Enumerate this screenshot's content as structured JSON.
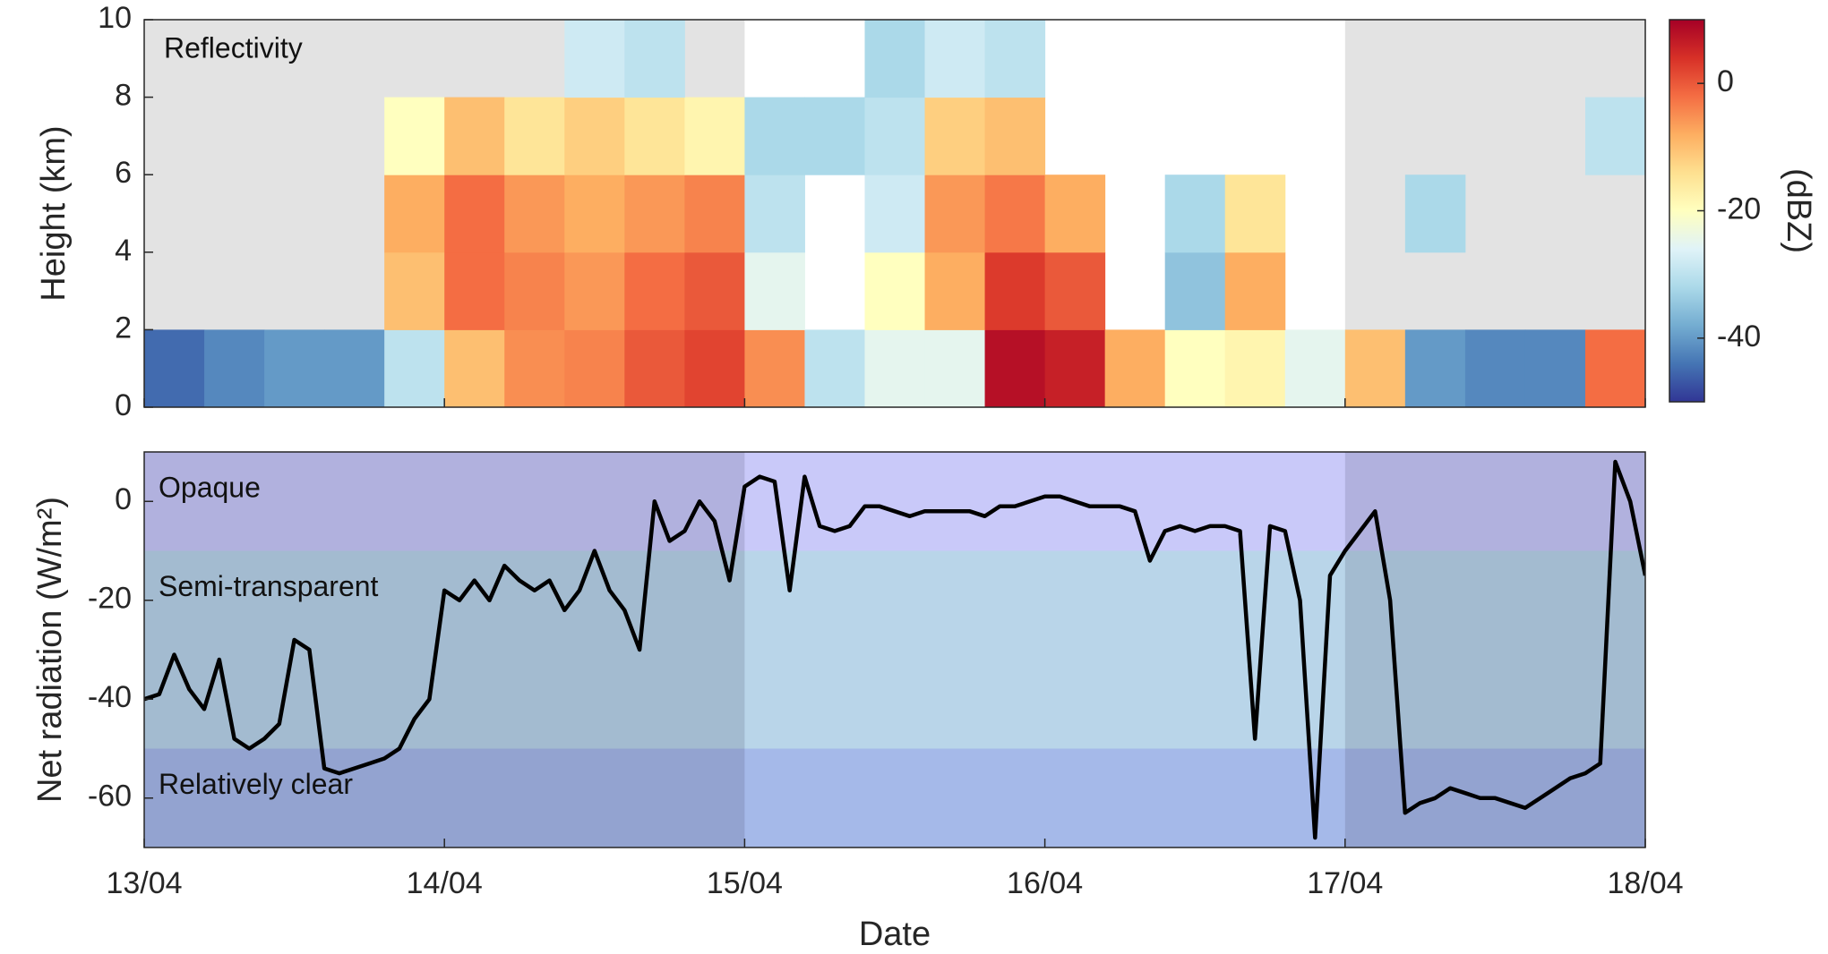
{
  "chart_data": [
    {
      "type": "heatmap",
      "annotation": "Reflectivity",
      "ylabel": "Height (km)",
      "colorbar_label": "(dBZ)",
      "x_bins": [
        0,
        0.2,
        0.4,
        0.6,
        0.8,
        1.0,
        1.2,
        1.4,
        1.6,
        1.8,
        2.0,
        2.2,
        2.4,
        2.6,
        2.8,
        3.0,
        3.2,
        3.4,
        3.6,
        3.8,
        4.0,
        4.2,
        4.4,
        4.6,
        4.8,
        5.0
      ],
      "y_bins": [
        0,
        2,
        4,
        6,
        8,
        10
      ],
      "z": [
        [
          -45,
          -42,
          -40,
          -40,
          -30,
          -10,
          -5,
          -4,
          0,
          2,
          -5,
          -30,
          -25,
          -25,
          8,
          6,
          -8,
          -20,
          -18,
          -25,
          -10,
          -40,
          -42,
          -42,
          -2
        ],
        [
          null,
          null,
          null,
          null,
          -10,
          -2,
          -4,
          -6,
          -2,
          0,
          -25,
          null,
          -20,
          -8,
          3,
          0,
          null,
          -35,
          -8,
          null,
          null,
          null,
          null,
          null,
          null
        ],
        [
          null,
          null,
          null,
          null,
          -8,
          -2,
          -6,
          -8,
          -6,
          -4,
          -30,
          null,
          -28,
          -6,
          -3,
          -8,
          null,
          -32,
          -15,
          null,
          null,
          -32,
          null,
          null,
          null
        ],
        [
          null,
          null,
          null,
          null,
          -20,
          -10,
          -15,
          -12,
          -15,
          -18,
          -32,
          -32,
          -30,
          -12,
          -10,
          null,
          null,
          null,
          null,
          null,
          null,
          null,
          null,
          null,
          -30
        ],
        [
          null,
          null,
          null,
          null,
          null,
          null,
          null,
          -28,
          -30,
          null,
          null,
          null,
          -32,
          -28,
          -30,
          null,
          null,
          null,
          null,
          null,
          null,
          null,
          null,
          null,
          null
        ]
      ],
      "xlim": [
        0,
        5
      ],
      "ylim": [
        0,
        10
      ],
      "yticks": [
        0,
        2,
        4,
        6,
        8,
        10
      ],
      "clim": [
        -50,
        10
      ],
      "cticks": [
        -40,
        -20,
        0
      ],
      "colormap": [
        "#313695",
        "#4575b4",
        "#74add1",
        "#abd9e9",
        "#e0f3f8",
        "#ffffbf",
        "#fee090",
        "#fdae61",
        "#f46d43",
        "#d73027",
        "#a50026"
      ],
      "shaded_periods": [
        [
          0,
          2
        ],
        [
          4,
          5
        ]
      ],
      "shade_color": "#e3e3e3"
    },
    {
      "type": "line",
      "ylabel": "Net radiation (W/m²)",
      "xlabel": "Date",
      "x": [
        0,
        0.05,
        0.1,
        0.15,
        0.2,
        0.25,
        0.3,
        0.35,
        0.4,
        0.45,
        0.5,
        0.55,
        0.6,
        0.65,
        0.7,
        0.75,
        0.8,
        0.85,
        0.9,
        0.95,
        1.0,
        1.05,
        1.1,
        1.15,
        1.2,
        1.25,
        1.3,
        1.35,
        1.4,
        1.45,
        1.5,
        1.55,
        1.6,
        1.65,
        1.7,
        1.75,
        1.8,
        1.85,
        1.9,
        1.95,
        2.0,
        2.05,
        2.1,
        2.15,
        2.2,
        2.25,
        2.3,
        2.35,
        2.4,
        2.45,
        2.5,
        2.55,
        2.6,
        2.65,
        2.7,
        2.75,
        2.8,
        2.85,
        2.9,
        2.95,
        3.0,
        3.05,
        3.1,
        3.15,
        3.2,
        3.25,
        3.3,
        3.35,
        3.4,
        3.45,
        3.5,
        3.55,
        3.6,
        3.65,
        3.7,
        3.75,
        3.8,
        3.85,
        3.9,
        3.95,
        4.0,
        4.05,
        4.1,
        4.15,
        4.2,
        4.25,
        4.3,
        4.35,
        4.4,
        4.45,
        4.5,
        4.55,
        4.6,
        4.65,
        4.7,
        4.75,
        4.8,
        4.85,
        4.9,
        4.95,
        5.0
      ],
      "series": [
        {
          "color": "#000000",
          "values": [
            -40,
            -39,
            -31,
            -38,
            -42,
            -32,
            -48,
            -50,
            -48,
            -45,
            -28,
            -30,
            -54,
            -55,
            -54,
            -53,
            -52,
            -50,
            -44,
            -40,
            -18,
            -20,
            -16,
            -20,
            -13,
            -16,
            -18,
            -16,
            -22,
            -18,
            -10,
            -18,
            -22,
            -30,
            0,
            -8,
            -6,
            0,
            -4,
            -16,
            3,
            5,
            4,
            -18,
            5,
            -5,
            -6,
            -5,
            -1,
            -1,
            -2,
            -3,
            -2,
            -2,
            -2,
            -2,
            -3,
            -1,
            -1,
            0,
            1,
            1,
            0,
            -1,
            -1,
            -1,
            -2,
            -12,
            -6,
            -5,
            -6,
            -5,
            -5,
            -6,
            -48,
            -5,
            -6,
            -20,
            -68,
            -15,
            -10,
            -6,
            -2,
            -20,
            -63,
            -61,
            -60,
            -58,
            -59,
            -60,
            -60,
            -61,
            -62,
            -60,
            -58,
            -56,
            -55,
            -53,
            8,
            0,
            -15
          ]
        }
      ],
      "bands": [
        {
          "label": "Opaque",
          "range": [
            -10,
            10
          ],
          "color": "#c9c9f9"
        },
        {
          "label": "Semi-transparent",
          "range": [
            -50,
            -10
          ],
          "color": "#b9d5e9"
        },
        {
          "label": "Relatively clear",
          "range": [
            -70,
            -50
          ],
          "color": "#a5b9e9"
        }
      ],
      "shaded_periods": [
        [
          0,
          2
        ],
        [
          4,
          5
        ]
      ],
      "shade_color": "rgba(60,60,90,0.17)",
      "xlim": [
        0,
        5
      ],
      "ylim": [
        -70,
        10
      ],
      "yticks": [
        -60,
        -40,
        -20,
        0
      ],
      "xticks": [
        {
          "value": 0,
          "label": "13/04"
        },
        {
          "value": 1,
          "label": "14/04"
        },
        {
          "value": 2,
          "label": "15/04"
        },
        {
          "value": 3,
          "label": "16/04"
        },
        {
          "value": 4,
          "label": "17/04"
        },
        {
          "value": 5,
          "label": "18/04"
        }
      ]
    }
  ]
}
